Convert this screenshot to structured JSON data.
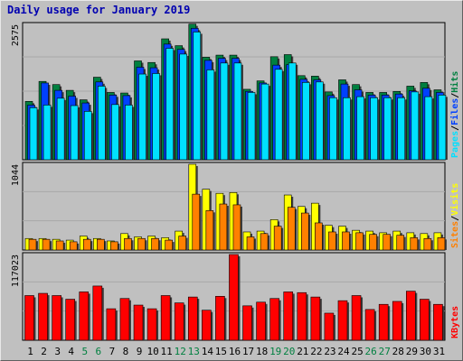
{
  "title": "Daily usage for January 2019",
  "colors": {
    "hits": "#008040",
    "files": "#0040ff",
    "pages": "#00e0ff",
    "visits": "#ffff00",
    "sites": "#ff8000",
    "kbytes": "#ff0000",
    "weekend_label": "#008040",
    "weekday_label": "#000000"
  },
  "chart_data": [
    {
      "type": "bar",
      "panel": "hits-files-pages",
      "ymax_label": "2575",
      "ylim": [
        0,
        2575
      ],
      "legend": [
        "Pages",
        "/",
        "Files",
        "/",
        "Hits"
      ],
      "categories": [
        "1",
        "2",
        "3",
        "4",
        "5",
        "6",
        "7",
        "8",
        "9",
        "10",
        "11",
        "12",
        "13",
        "14",
        "15",
        "16",
        "17",
        "18",
        "19",
        "20",
        "21",
        "22",
        "23",
        "24",
        "25",
        "26",
        "27",
        "28",
        "29",
        "30",
        "31"
      ],
      "series": [
        {
          "name": "Hits",
          "values": [
            1110,
            1490,
            1430,
            1320,
            1140,
            1570,
            1280,
            1270,
            1880,
            1850,
            2300,
            2170,
            2580,
            1950,
            1990,
            1990,
            1340,
            1500,
            1960,
            2000,
            1600,
            1590,
            1290,
            1520,
            1430,
            1280,
            1280,
            1300,
            1400,
            1470,
            1330
          ]
        },
        {
          "name": "Files",
          "values": [
            1040,
            1460,
            1320,
            1210,
            1080,
            1480,
            1230,
            1220,
            1760,
            1750,
            2200,
            2100,
            2500,
            1890,
            1930,
            1930,
            1300,
            1460,
            1800,
            1810,
            1530,
            1520,
            1220,
            1440,
            1330,
            1230,
            1230,
            1250,
            1310,
            1360,
            1280
          ]
        },
        {
          "name": "Pages",
          "values": [
            990,
            1040,
            1170,
            1030,
            920,
            1400,
            1050,
            1040,
            1630,
            1640,
            2120,
            2010,
            2430,
            1710,
            1840,
            1840,
            1280,
            1440,
            1720,
            1840,
            1470,
            1480,
            1180,
            1180,
            1200,
            1180,
            1180,
            1180,
            1290,
            1200,
            1230
          ]
        }
      ]
    },
    {
      "type": "bar",
      "panel": "visits-sites",
      "ymax_label": "1044",
      "ylim": [
        0,
        1044
      ],
      "legend": [
        "Sites",
        "/",
        "Visits"
      ],
      "categories": [
        "1",
        "2",
        "3",
        "4",
        "5",
        "6",
        "7",
        "8",
        "9",
        "10",
        "11",
        "12",
        "13",
        "14",
        "15",
        "16",
        "17",
        "18",
        "19",
        "20",
        "21",
        "22",
        "23",
        "24",
        "25",
        "26",
        "27",
        "28",
        "29",
        "30",
        "31"
      ],
      "series": [
        {
          "name": "Visits",
          "values": [
            140,
            140,
            130,
            120,
            170,
            140,
            110,
            200,
            160,
            170,
            150,
            230,
            1044,
            740,
            690,
            700,
            220,
            230,
            370,
            670,
            530,
            570,
            300,
            290,
            240,
            230,
            210,
            230,
            210,
            200,
            210
          ]
        },
        {
          "name": "Sites",
          "values": [
            130,
            130,
            110,
            100,
            130,
            130,
            100,
            140,
            140,
            140,
            120,
            170,
            680,
            480,
            560,
            550,
            160,
            200,
            290,
            520,
            450,
            330,
            220,
            220,
            210,
            190,
            190,
            180,
            150,
            140,
            150
          ]
        }
      ]
    },
    {
      "type": "bar",
      "panel": "kbytes",
      "ymax_label": "117023",
      "ylim": [
        0,
        117023
      ],
      "legend": [
        "KBytes"
      ],
      "categories": [
        "1",
        "2",
        "3",
        "4",
        "5",
        "6",
        "7",
        "8",
        "9",
        "10",
        "11",
        "12",
        "13",
        "14",
        "15",
        "16",
        "17",
        "18",
        "19",
        "20",
        "21",
        "22",
        "23",
        "24",
        "25",
        "26",
        "27",
        "28",
        "29",
        "30",
        "31"
      ],
      "series": [
        {
          "name": "KBytes",
          "values": [
            61000,
            64000,
            61000,
            56000,
            66000,
            74000,
            43000,
            57000,
            48000,
            43000,
            61000,
            51000,
            59000,
            41000,
            60000,
            117023,
            47000,
            52000,
            57000,
            66000,
            65000,
            59000,
            37000,
            54000,
            61000,
            42000,
            49000,
            53000,
            67000,
            56000,
            49000
          ]
        }
      ]
    }
  ],
  "x_weekend_days": [
    "5",
    "6",
    "12",
    "13",
    "19",
    "20",
    "26",
    "27"
  ]
}
